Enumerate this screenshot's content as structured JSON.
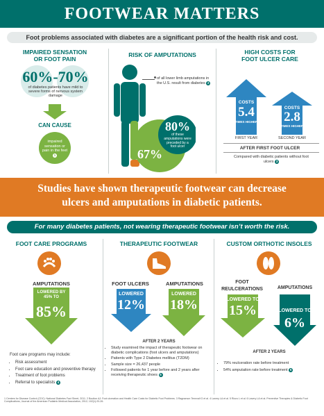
{
  "title": "FOOTWEAR MATTERS",
  "intro": "Foot problems associated with diabetes are a significant portion of the health risk and cost.",
  "col1": {
    "heading1": "IMPAIRED SENSATION",
    "heading2": "OR FOOT PAIN",
    "pct_low": "60%",
    "dash": "-",
    "pct_high": "70%",
    "desc": "of diabetes patients have mild to severe forms of nervous system damage",
    "can_cause": "CAN CAUSE",
    "result": "impaired sensation or pain in the feet",
    "ref": "1"
  },
  "col2": {
    "heading": "RISK OF AMPUTATIONS",
    "pie_small_value": "67%",
    "pie_small_desc": "of all lower limb amputations in the U.S. result from diabetes",
    "pie_small_ref": "2",
    "pie_big_value": "80%",
    "pie_big_desc": "of these amputations were preceded by a foot ulcer"
  },
  "col3": {
    "heading1": "HIGH COSTS FOR",
    "heading2": "FOOT ULCER CARE",
    "costs_label": "COSTS",
    "first_value": "5.4",
    "second_value": "2.8",
    "times_higher": "TIMES HIGHER",
    "first_year": "FIRST YEAR",
    "second_year": "SECOND YEAR",
    "after_label": "AFTER FIRST FOOT ULCER",
    "compared": "Compared with diabetic patients without foot ulcers",
    "ref": "3"
  },
  "orange_line1": "Studies have shown therapeutic footwear can decrease",
  "orange_line2": "ulcers and amputations in diabetic patients.",
  "banner2": "For many diabetes patients, not wearing therapeutic footwear isn’t worth the risk.",
  "programs": {
    "heading": "FOOT CARE PROGRAMS",
    "amputations": "AMPUTATIONS",
    "lowered_by": "LOWERED BY 45% TO",
    "value": "85%",
    "intro": "Foot care programs may include:",
    "items": [
      "Risk assessment",
      "Foot care education and preventive therapy",
      "Treatment of foot problems",
      "Referral to specialists"
    ],
    "ref": "4"
  },
  "footwear": {
    "heading": "THERAPEUTIC FOOTWEAR",
    "ulcers_label": "FOOT ULCERS",
    "amputations_label": "AMPUTATIONS",
    "lowered": "LOWERED",
    "ulcers_value": "12%",
    "amputations_value": "18%",
    "after": "AFTER 2 YEARS",
    "items": [
      "Study examined the impact of therapeutic footwear on diabetic complications (foot ulcers and amputations)",
      "Patients with Type 2 Diabetes mellitus (T2DM)",
      "Sample size = 26,437 people",
      "Followed patients for 1 year before and 2 years after receiving therapeutic shoes"
    ],
    "ref": "5"
  },
  "insoles": {
    "heading": "CUSTOM ORTHOTIC INSOLES",
    "reulcer_label1": "FOOT",
    "reulcer_label2": "REULCERATIONS",
    "amputations_label": "AMPUTATIONS",
    "lowered_to": "LOWERED TO",
    "reulcer_value": "15%",
    "amputations_value": "6%",
    "after": "AFTER 2 YEARS",
    "items": [
      "79% reulceration rate before treatment",
      "54% amputation rate before treatment"
    ],
    "ref": "6"
  },
  "footnote": "1 Centers for Disease Control (CDC): National Diabetes Fact Sheet, 2011. 2 Boulton AJ: Foot ulceration and Health Care Costs for Diabetic Foot Problems. 3 Ragnarson Tennvall G et al. 4 Lavery LA et al. 5 Rizzo L et al. 6 Lavery LA et al. Preventive Therapies & Diabetic Foot Complications, Journal of the American Podiatric Medical Association, 2012; 102(1):20-26."
}
